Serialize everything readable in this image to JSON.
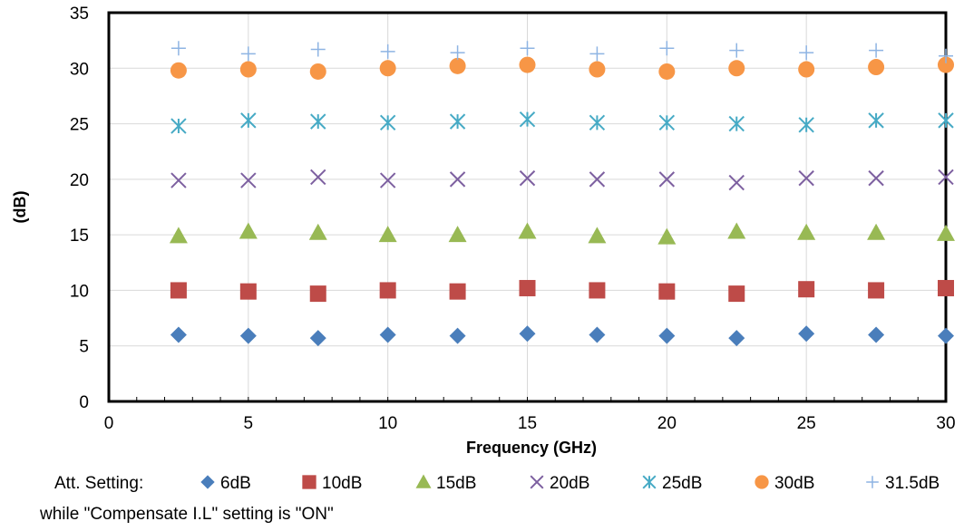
{
  "chart_data": {
    "type": "scatter",
    "title": "",
    "xlabel": "Frequency (GHz)",
    "ylabel": "(dB)",
    "xlim": [
      0,
      30
    ],
    "ylim": [
      0,
      35
    ],
    "xticks": [
      0,
      5,
      10,
      15,
      20,
      25,
      30
    ],
    "yticks": [
      0,
      5,
      10,
      15,
      20,
      25,
      30,
      35
    ],
    "grid": true,
    "x": [
      2.5,
      5,
      7.5,
      10,
      12.5,
      15,
      17.5,
      20,
      22.5,
      25,
      27.5,
      30
    ],
    "legend_prefix": "Att. Setting:",
    "legend_placement": "bottom",
    "note": "while \"Compensate I.L\" setting is \"ON\"",
    "series": [
      {
        "name": "6dB",
        "marker": "diamond",
        "color": "#4a7ebb",
        "values": [
          6.0,
          5.9,
          5.7,
          6.0,
          5.9,
          6.1,
          6.0,
          5.9,
          5.7,
          6.1,
          6.0,
          5.9
        ]
      },
      {
        "name": "10dB",
        "marker": "square",
        "color": "#be4b48",
        "values": [
          10.0,
          9.9,
          9.7,
          10.0,
          9.9,
          10.2,
          10.0,
          9.9,
          9.7,
          10.1,
          10.0,
          10.2
        ]
      },
      {
        "name": "15dB",
        "marker": "triangle",
        "color": "#98b954",
        "values": [
          14.9,
          15.3,
          15.2,
          15.0,
          15.0,
          15.3,
          14.9,
          14.8,
          15.3,
          15.2,
          15.2,
          15.1
        ]
      },
      {
        "name": "20dB",
        "marker": "x",
        "color": "#7d60a0",
        "values": [
          19.9,
          19.9,
          20.2,
          19.9,
          20.0,
          20.1,
          20.0,
          20.0,
          19.7,
          20.1,
          20.1,
          20.2
        ]
      },
      {
        "name": "25dB",
        "marker": "asterisk",
        "color": "#46aac5",
        "values": [
          24.8,
          25.3,
          25.2,
          25.1,
          25.2,
          25.4,
          25.1,
          25.1,
          25.0,
          24.9,
          25.3,
          25.3
        ]
      },
      {
        "name": "30dB",
        "marker": "circle",
        "color": "#f79646",
        "values": [
          29.8,
          29.9,
          29.7,
          30.0,
          30.2,
          30.3,
          29.9,
          29.7,
          30.0,
          29.9,
          30.1,
          30.3
        ]
      },
      {
        "name": "31.5dB",
        "marker": "plus",
        "color": "#8eb4e3",
        "values": [
          31.8,
          31.3,
          31.7,
          31.5,
          31.4,
          31.8,
          31.3,
          31.8,
          31.6,
          31.4,
          31.6,
          31.1
        ]
      }
    ]
  }
}
